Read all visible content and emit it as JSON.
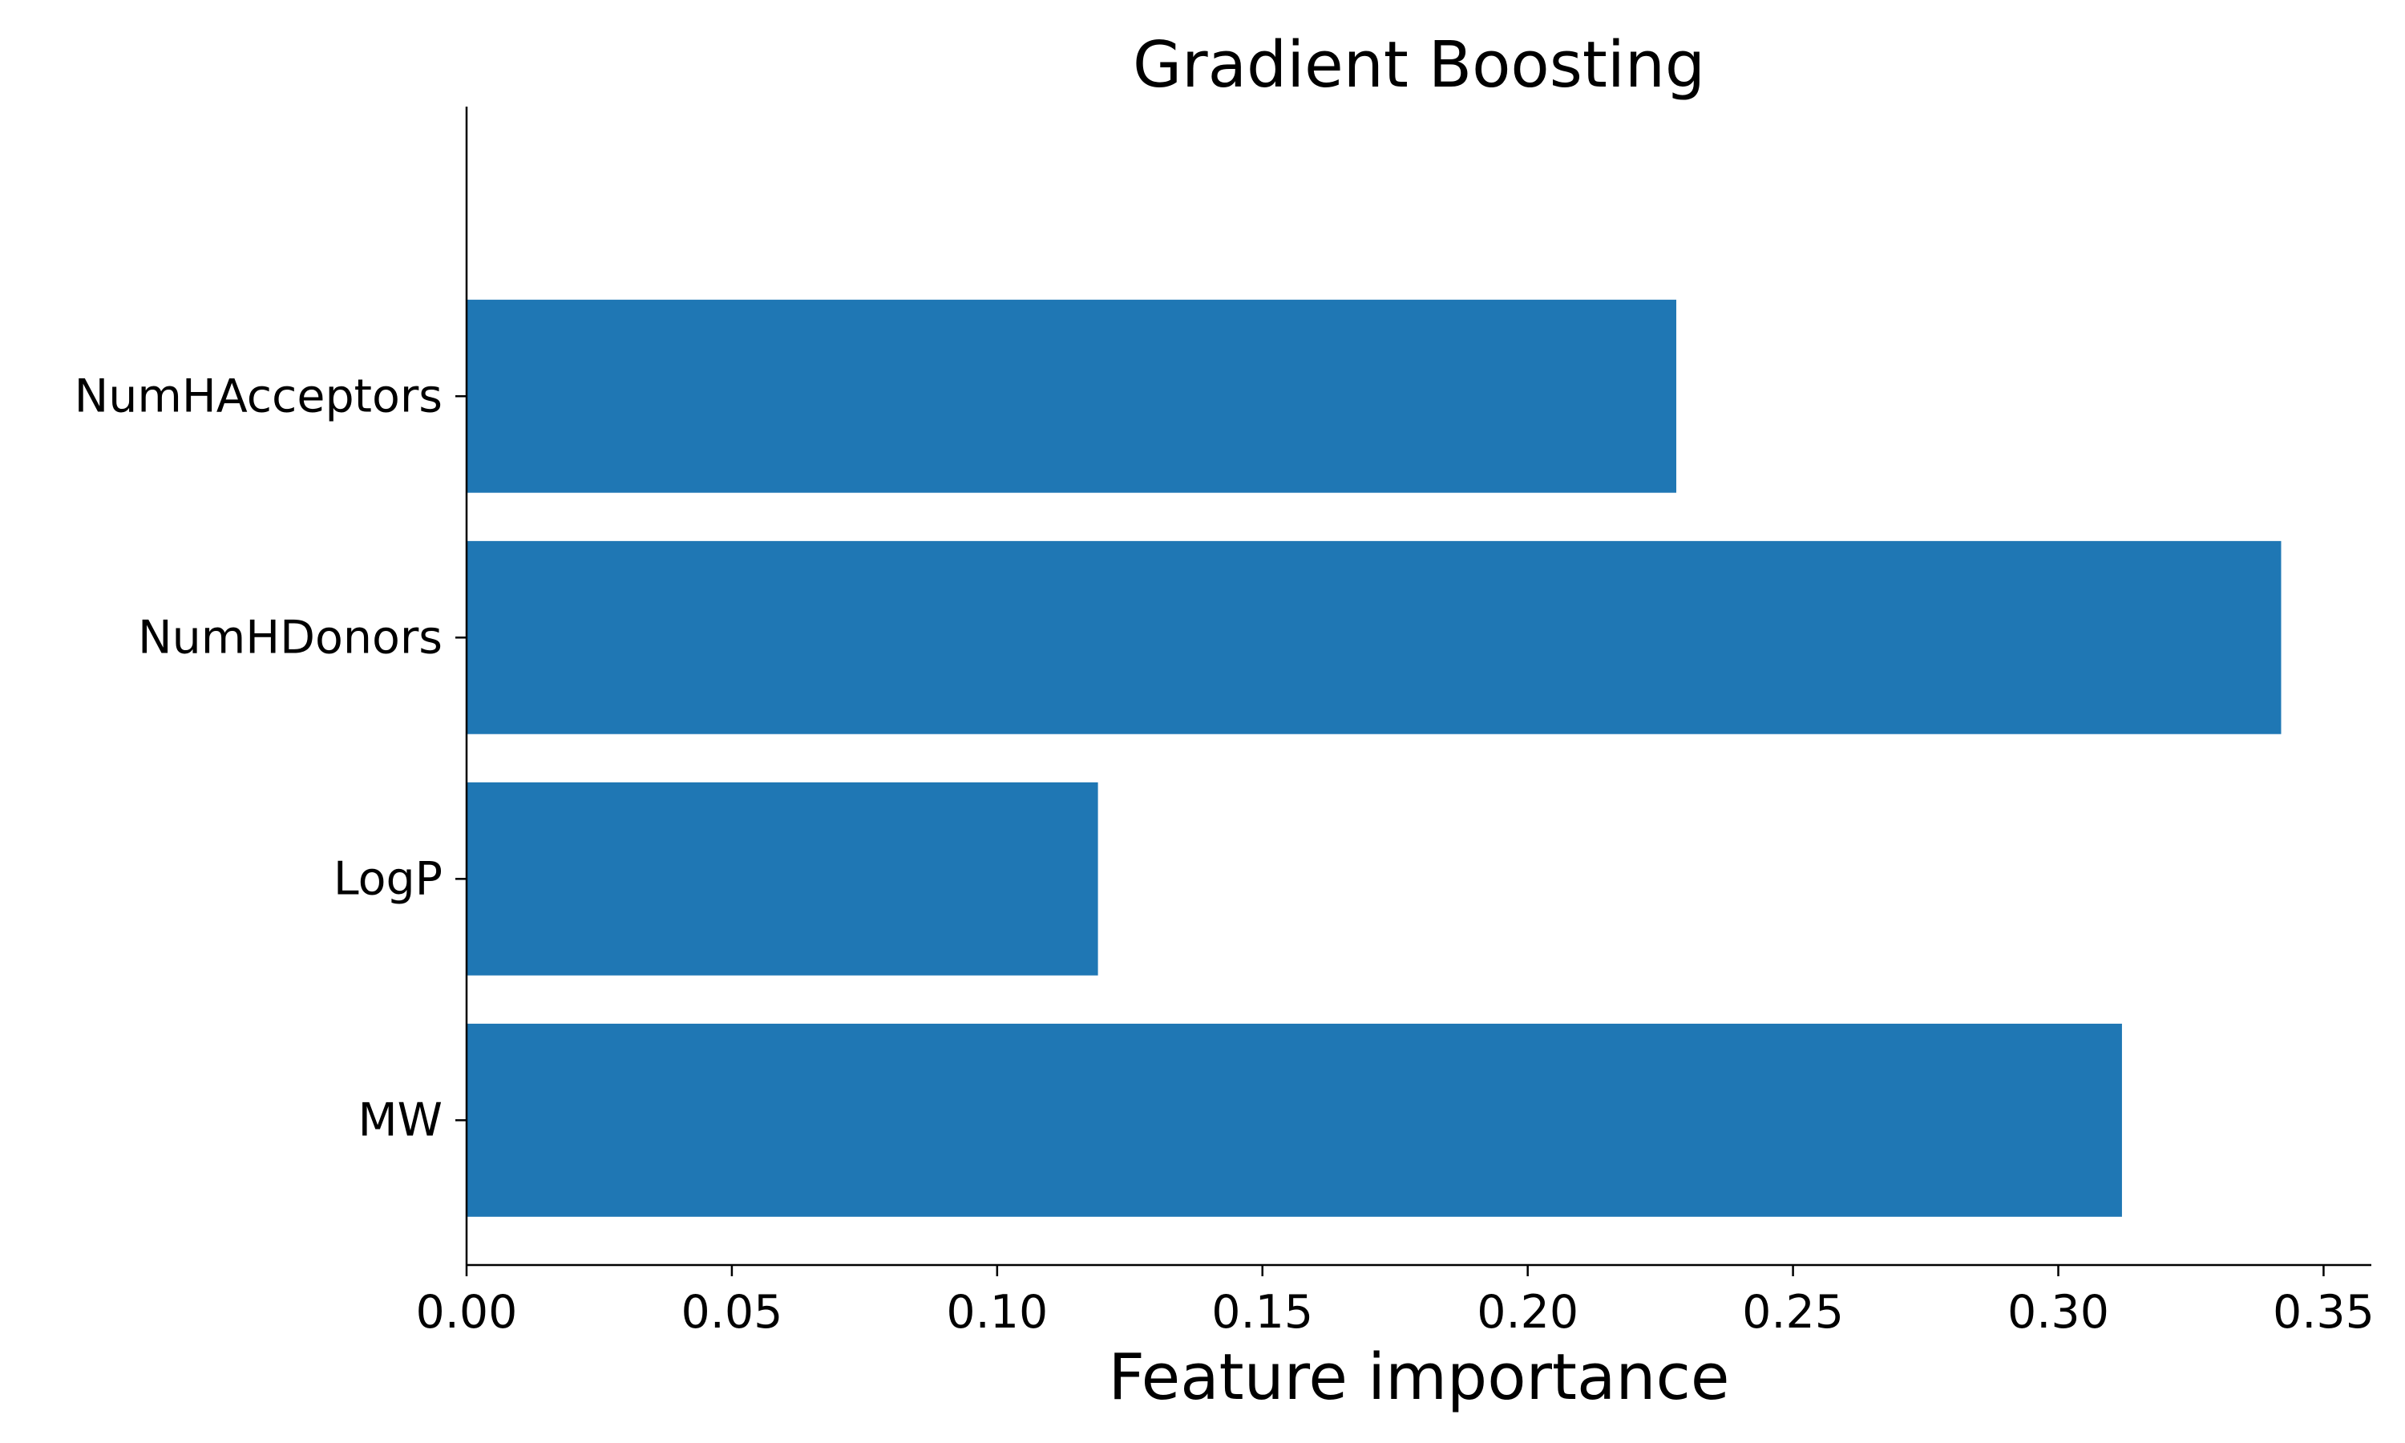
{
  "chart_data": {
    "type": "bar",
    "orientation": "horizontal",
    "title": "Gradient Boosting",
    "xlabel": "Feature importance",
    "ylabel": "",
    "categories": [
      "MW",
      "LogP",
      "NumHDonors",
      "NumHAcceptors"
    ],
    "values": [
      0.312,
      0.119,
      0.342,
      0.228
    ],
    "xlim": [
      0.0,
      0.359
    ],
    "xticks": [
      "0.00",
      "0.05",
      "0.10",
      "0.15",
      "0.20",
      "0.25",
      "0.30",
      "0.35"
    ],
    "grid": false,
    "legend": "none",
    "bar_color": "#1f77b4"
  }
}
